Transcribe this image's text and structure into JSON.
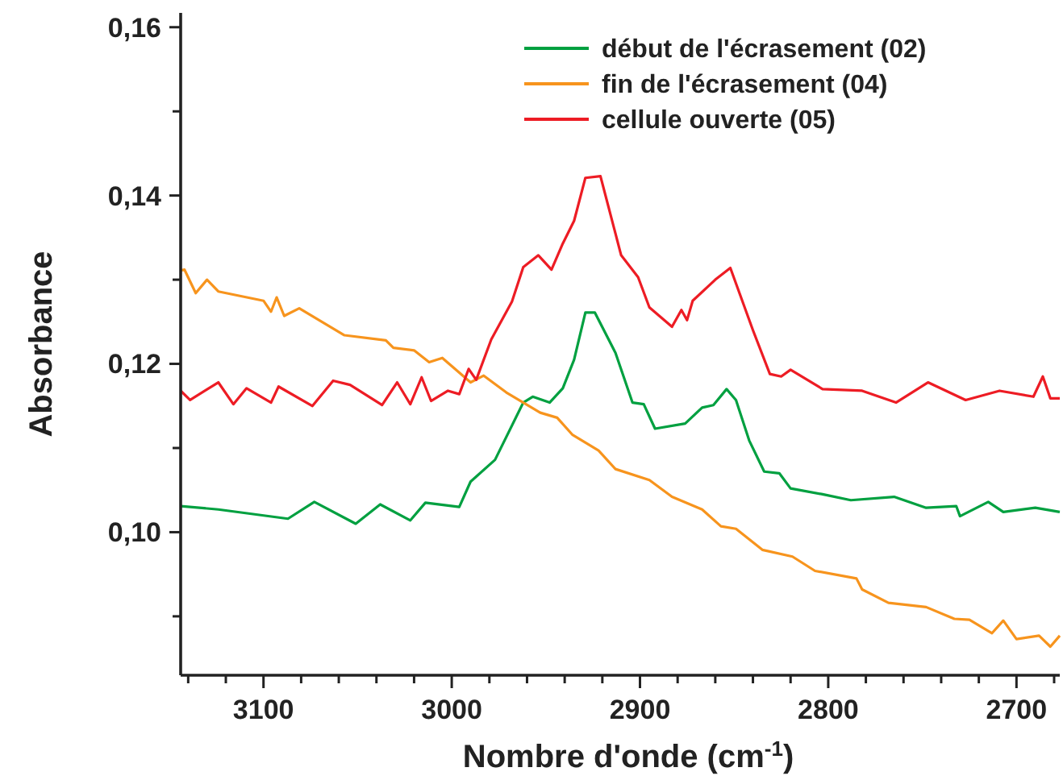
{
  "chart_data": {
    "type": "line",
    "xlabel": "Nombre d'onde (cm$^{-1}$)",
    "ylabel": "Absorbance",
    "xlim": [
      3144,
      2677
    ],
    "ylim": [
      0.083,
      0.1617
    ],
    "xticks": [
      {
        "value": 3140,
        "label": null
      },
      {
        "value": 3120,
        "label": null
      },
      3100,
      {
        "value": 3080,
        "label": null
      },
      {
        "value": 3060,
        "label": null
      },
      {
        "value": 3040,
        "label": null
      },
      {
        "value": 3020,
        "label": null
      },
      3000,
      {
        "value": 2980,
        "label": null
      },
      {
        "value": 2960,
        "label": null
      },
      {
        "value": 2940,
        "label": null
      },
      {
        "value": 2920,
        "label": null
      },
      2900,
      {
        "value": 2880,
        "label": null
      },
      {
        "value": 2860,
        "label": null
      },
      {
        "value": 2840,
        "label": null
      },
      {
        "value": 2820,
        "label": null
      },
      2800,
      {
        "value": 2780,
        "label": null
      },
      {
        "value": 2760,
        "label": null
      },
      {
        "value": 2740,
        "label": null
      },
      {
        "value": 2720,
        "label": null
      },
      2700,
      {
        "value": 2680,
        "label": null
      }
    ],
    "yticks": [
      {
        "value": 0.09,
        "label": null
      },
      {
        "value": 0.1,
        "label": "0,10"
      },
      {
        "value": 0.11,
        "label": null
      },
      {
        "value": 0.12,
        "label": "0,12"
      },
      {
        "value": 0.13,
        "label": null
      },
      {
        "value": 0.14,
        "label": "0,14"
      },
      {
        "value": 0.15,
        "label": null
      },
      {
        "value": 0.16,
        "label": "0,16"
      }
    ],
    "legend": "top right",
    "grid": false,
    "marker": "none",
    "line_style": "solid",
    "series": [
      {
        "name": "début de l'écrasement (02)",
        "color": "#00a040",
        "x": [
          3144,
          3124,
          3087,
          3073,
          3051,
          3038,
          3022,
          3014,
          2996,
          2990,
          2977,
          2962,
          2957,
          2948,
          2941,
          2935,
          2929,
          2924,
          2913,
          2904,
          2898,
          2892,
          2876,
          2867,
          2861,
          2854,
          2849,
          2842,
          2834,
          2826,
          2820,
          2803,
          2788,
          2765,
          2748,
          2732,
          2730,
          2715,
          2707,
          2690,
          2677
        ],
        "values": [
          0.1031,
          0.1027,
          0.1016,
          0.1036,
          0.101,
          0.1033,
          0.1014,
          0.1035,
          0.103,
          0.106,
          0.1086,
          0.1154,
          0.1161,
          0.1154,
          0.1171,
          0.1205,
          0.1261,
          0.1261,
          0.1213,
          0.1154,
          0.1152,
          0.1123,
          0.1129,
          0.1148,
          0.1151,
          0.117,
          0.1157,
          0.1109,
          0.1072,
          0.107,
          0.1052,
          0.1045,
          0.1038,
          0.1042,
          0.1029,
          0.1031,
          0.1019,
          0.1036,
          0.1024,
          0.1029,
          0.1024
        ]
      },
      {
        "name": "fin de l'écrasement (04)",
        "color": "#f7941d",
        "x": [
          3144,
          3142,
          3136,
          3130,
          3124,
          3100,
          3096,
          3093,
          3089,
          3081,
          3057,
          3035,
          3031,
          3020,
          3012,
          3005,
          2990,
          2983,
          2971,
          2953,
          2944,
          2936,
          2922,
          2913,
          2895,
          2883,
          2867,
          2857,
          2849,
          2835,
          2819,
          2807,
          2785,
          2782,
          2768,
          2748,
          2733,
          2725,
          2713,
          2707,
          2700,
          2688,
          2682,
          2677
        ],
        "values": [
          0.1311,
          0.1312,
          0.1284,
          0.13,
          0.1286,
          0.1275,
          0.1262,
          0.1279,
          0.1257,
          0.1266,
          0.1234,
          0.1228,
          0.1219,
          0.1216,
          0.1202,
          0.1207,
          0.1178,
          0.1186,
          0.1166,
          0.1142,
          0.1136,
          0.1116,
          0.1097,
          0.1075,
          0.1062,
          0.1042,
          0.1027,
          0.1007,
          0.1004,
          0.0979,
          0.0971,
          0.0954,
          0.0945,
          0.0932,
          0.0916,
          0.0911,
          0.0897,
          0.0896,
          0.088,
          0.0895,
          0.0873,
          0.0877,
          0.0864,
          0.0877
        ]
      },
      {
        "name": "cellule ouverte (05)",
        "color": "#ed1c24",
        "x": [
          3144,
          3139,
          3124,
          3116,
          3109,
          3096,
          3092,
          3074,
          3063,
          3054,
          3037,
          3029,
          3022,
          3016,
          3011,
          3002,
          2996,
          2991,
          2987,
          2979,
          2968,
          2962,
          2954,
          2947,
          2941,
          2935,
          2929,
          2921,
          2910,
          2901,
          2895,
          2883,
          2878,
          2875,
          2872,
          2860,
          2852,
          2840,
          2831,
          2825,
          2820,
          2803,
          2782,
          2764,
          2747,
          2727,
          2709,
          2691,
          2686,
          2682,
          2677
        ],
        "values": [
          0.1168,
          0.1157,
          0.1178,
          0.1152,
          0.1171,
          0.1154,
          0.1173,
          0.115,
          0.118,
          0.1175,
          0.1151,
          0.1178,
          0.1152,
          0.1184,
          0.1156,
          0.1168,
          0.1164,
          0.1194,
          0.1181,
          0.1229,
          0.1274,
          0.1315,
          0.1329,
          0.1312,
          0.1343,
          0.137,
          0.1421,
          0.1423,
          0.1329,
          0.1303,
          0.1267,
          0.1244,
          0.1264,
          0.1252,
          0.1275,
          0.13,
          0.1314,
          0.124,
          0.1188,
          0.1185,
          0.1193,
          0.117,
          0.1168,
          0.1154,
          0.1178,
          0.1157,
          0.1168,
          0.1161,
          0.1185,
          0.1159,
          0.1159
        ]
      }
    ]
  }
}
